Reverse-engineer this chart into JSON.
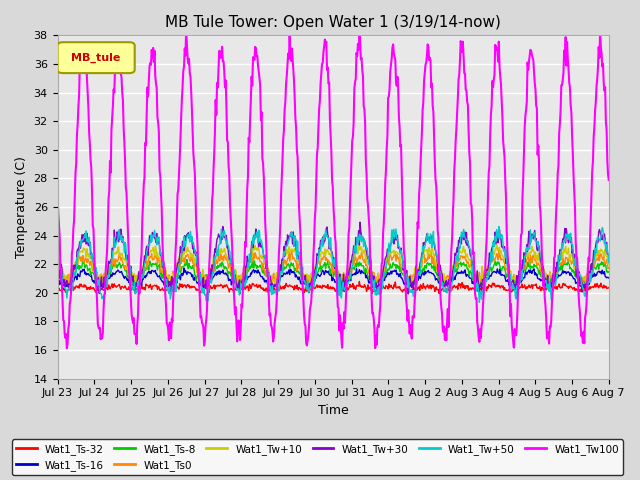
{
  "title": "MB Tule Tower: Open Water 1 (3/19/14-now)",
  "xlabel": "Time",
  "ylabel": "Temperature (C)",
  "ylim": [
    14,
    38
  ],
  "yticks": [
    14,
    16,
    18,
    20,
    22,
    24,
    26,
    28,
    30,
    32,
    34,
    36,
    38
  ],
  "xtick_labels": [
    "Jul 23",
    "Jul 24",
    "Jul 25",
    "Jul 26",
    "Jul 27",
    "Jul 28",
    "Jul 29",
    "Jul 30",
    "Jul 31",
    "Aug 1",
    "Aug 2",
    "Aug 3",
    "Aug 4",
    "Aug 5",
    "Aug 6",
    "Aug 7"
  ],
  "legend_label": "MB_tule",
  "legend_box_color": "#ffff99",
  "legend_box_edge": "#999900",
  "series": [
    {
      "label": "Wat1_Ts-32",
      "color": "#ff0000"
    },
    {
      "label": "Wat1_Ts-16",
      "color": "#0000cc"
    },
    {
      "label": "Wat1_Ts-8",
      "color": "#00cc00"
    },
    {
      "label": "Wat1_Ts0",
      "color": "#ff8800"
    },
    {
      "label": "Wat1_Tw+10",
      "color": "#cccc00"
    },
    {
      "label": "Wat1_Tw+30",
      "color": "#8800cc"
    },
    {
      "label": "Wat1_Tw+50",
      "color": "#00cccc"
    },
    {
      "label": "Wat1_Tw100",
      "color": "#ff00ff"
    }
  ],
  "bg_color": "#e8e8e8",
  "plot_bg_color": "#e8e8e8"
}
